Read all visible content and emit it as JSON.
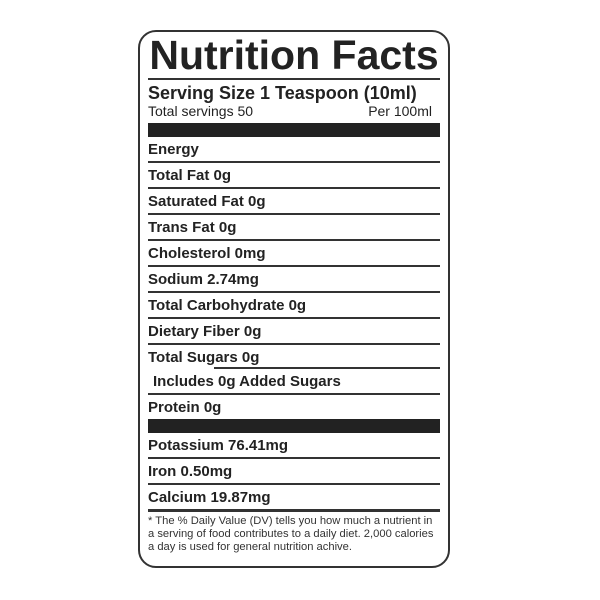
{
  "title": "Nutrition Facts",
  "serving_size": "Serving Size 1 Teaspoon (10ml)",
  "total_servings": "Total servings 50",
  "per": "Per 100ml",
  "nutrients": [
    "Energy",
    "Total Fat 0g",
    "Saturated Fat 0g",
    "Trans Fat 0g",
    "Cholesterol 0mg",
    "Sodium 2.74mg",
    "Total Carbohydrate 0g",
    "Dietary Fiber 0g",
    "Total Sugars 0g",
    "Includes 0g Added Sugars",
    "Protein  0g"
  ],
  "minerals": [
    "Potassium 76.41mg",
    "Iron 0.50mg",
    "Calcium 19.87mg"
  ],
  "footnote": "* The % Daily Value (DV) tells you how much a nutrient in a serving of food contributes to a daily diet. 2,000 calories a day is used for general nutrition achive."
}
